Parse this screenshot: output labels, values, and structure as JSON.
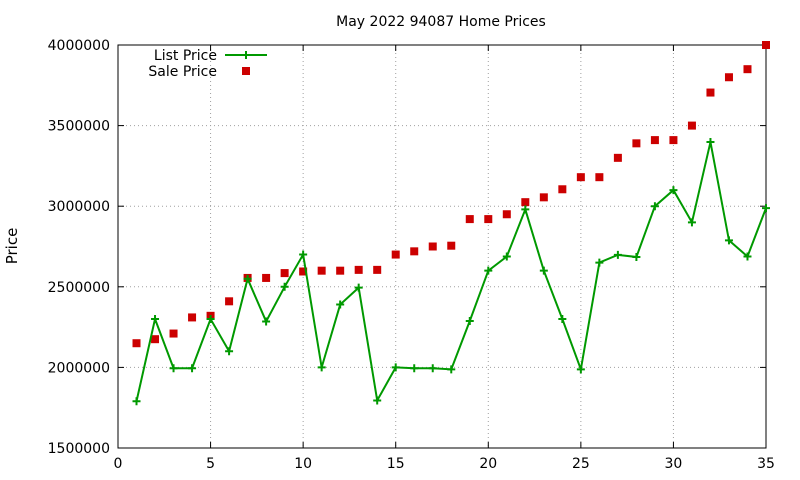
{
  "chart_data": {
    "type": "line",
    "title": "May 2022 94087 Home Prices",
    "ylabel": "Price",
    "xlabel": "",
    "xlim": [
      0,
      35
    ],
    "ylim": [
      1500000,
      4000000
    ],
    "xticks": [
      0,
      5,
      10,
      15,
      20,
      25,
      30,
      35
    ],
    "yticks": [
      1500000,
      2000000,
      2500000,
      3000000,
      3500000,
      4000000
    ],
    "grid": true,
    "legend_position": "top-left",
    "x": [
      1,
      2,
      3,
      4,
      5,
      6,
      7,
      8,
      9,
      10,
      11,
      12,
      13,
      14,
      15,
      16,
      17,
      18,
      19,
      20,
      21,
      22,
      23,
      24,
      25,
      26,
      27,
      28,
      29,
      30,
      31,
      32,
      33,
      34,
      35
    ],
    "series": [
      {
        "name": "List Price",
        "style": "line-cross",
        "color": "#009900",
        "values": [
          1790000,
          2300000,
          1995000,
          1995000,
          2300000,
          2100000,
          2550000,
          2285000,
          2500000,
          2700000,
          2000000,
          2390000,
          2495000,
          1795000,
          2000000,
          1995000,
          1995000,
          1988000,
          2288000,
          2600000,
          2688000,
          2980000,
          2600000,
          2300000,
          1988000,
          2650000,
          2698000,
          2685000,
          3000000,
          3100000,
          2900000,
          3398000,
          2788000,
          2688000,
          2988000
        ]
      },
      {
        "name": "Sale Price",
        "style": "points-square",
        "color": "#cc0000",
        "values": [
          2150000,
          2175000,
          2210000,
          2310000,
          2320000,
          2410000,
          2555000,
          2555000,
          2585000,
          2595000,
          2600000,
          2600000,
          2605000,
          2605000,
          2700000,
          2720000,
          2750000,
          2755000,
          2920000,
          2920000,
          2950000,
          3025000,
          3055000,
          3105000,
          3180000,
          3180000,
          3300000,
          3390000,
          3410000,
          3410000,
          3500000,
          3705000,
          3800000,
          3850000,
          4000000
        ]
      }
    ]
  }
}
